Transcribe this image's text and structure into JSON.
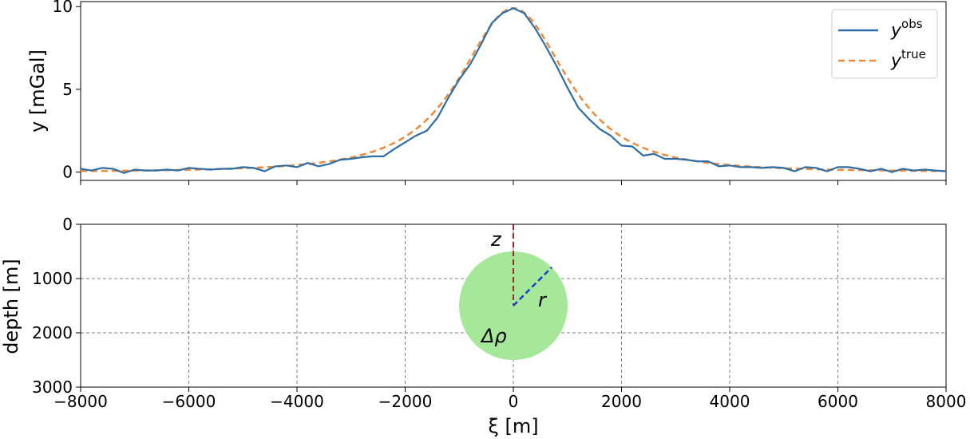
{
  "chart_data": [
    {
      "type": "line",
      "title": "",
      "xlabel": "",
      "ylabel": "y [mGal]",
      "xlim": [
        -8000,
        8000
      ],
      "ylim": [
        -0.5,
        10.3
      ],
      "yticks": [
        0,
        5,
        10
      ],
      "ytick_labels": [
        "0",
        "5",
        "10"
      ],
      "grid": false,
      "legend_position": "top-right",
      "series": [
        {
          "name_base": "y",
          "name_sup": "obs",
          "color": "#2f6ea5",
          "style": "solid",
          "x": [
            -8000,
            -7800,
            -7600,
            -7400,
            -7200,
            -7000,
            -6800,
            -6600,
            -6400,
            -6200,
            -6000,
            -5800,
            -5600,
            -5400,
            -5200,
            -5000,
            -4800,
            -4600,
            -4400,
            -4200,
            -4000,
            -3800,
            -3600,
            -3400,
            -3200,
            -3000,
            -2800,
            -2600,
            -2400,
            -2200,
            -2000,
            -1800,
            -1600,
            -1400,
            -1200,
            -1000,
            -800,
            -600,
            -400,
            -200,
            0,
            200,
            400,
            600,
            800,
            1000,
            1200,
            1400,
            1600,
            1800,
            2000,
            2200,
            2400,
            2600,
            2800,
            3000,
            3200,
            3400,
            3600,
            3800,
            4000,
            4200,
            4400,
            4600,
            4800,
            5000,
            5200,
            5400,
            5600,
            5800,
            6000,
            6200,
            6400,
            6600,
            6800,
            7000,
            7200,
            7400,
            7600,
            7800,
            8000
          ],
          "y": [
            0.2,
            0.1,
            0.25,
            0.2,
            -0.05,
            0.15,
            0.1,
            0.1,
            0.15,
            0.1,
            0.25,
            0.2,
            0.15,
            0.2,
            0.2,
            0.3,
            0.25,
            0.05,
            0.35,
            0.4,
            0.3,
            0.55,
            0.35,
            0.5,
            0.75,
            0.8,
            0.9,
            0.95,
            0.95,
            1.4,
            1.8,
            2.2,
            2.5,
            3.3,
            4.5,
            5.6,
            6.5,
            7.7,
            9.0,
            9.6,
            9.9,
            9.6,
            8.7,
            7.6,
            6.4,
            5.1,
            3.9,
            3.2,
            2.6,
            2.2,
            1.6,
            1.55,
            1.0,
            1.1,
            0.8,
            0.8,
            0.75,
            0.65,
            0.65,
            0.35,
            0.4,
            0.3,
            0.3,
            0.25,
            0.3,
            0.25,
            0.05,
            0.3,
            0.25,
            0.05,
            0.3,
            0.3,
            0.2,
            0.05,
            0.2,
            0.0,
            0.2,
            0.1,
            0.15,
            0.1,
            0.05
          ]
        },
        {
          "name_base": "y",
          "name_sup": "true",
          "color": "#f08a3a",
          "style": "dashed",
          "model": "sphere",
          "peak": 9.9,
          "center": 0,
          "depth": 1500
        }
      ]
    },
    {
      "type": "diagram",
      "title": "",
      "xlabel": "ξ [m]",
      "ylabel": "depth [m]",
      "xlim": [
        -8000,
        8000
      ],
      "ylim": [
        3000,
        0
      ],
      "xticks": [
        -8000,
        -6000,
        -4000,
        -2000,
        0,
        2000,
        4000,
        6000,
        8000
      ],
      "xtick_labels": [
        "−8000",
        "−6000",
        "−4000",
        "−2000",
        "0",
        "2000",
        "4000",
        "6000",
        "8000"
      ],
      "yticks": [
        0,
        1000,
        2000,
        3000
      ],
      "ytick_labels": [
        "0",
        "1000",
        "2000",
        "3000"
      ],
      "grid": true,
      "sphere": {
        "center_x": 0,
        "center_depth": 1500,
        "radius": 1000,
        "fill": "#a5e89a",
        "label": "Δρ",
        "label_color": "#2f7a2a"
      },
      "depth_line": {
        "label": "z",
        "color": "#a0282a"
      },
      "radius_line": {
        "label": "r",
        "color": "#1f3fcf"
      }
    }
  ]
}
